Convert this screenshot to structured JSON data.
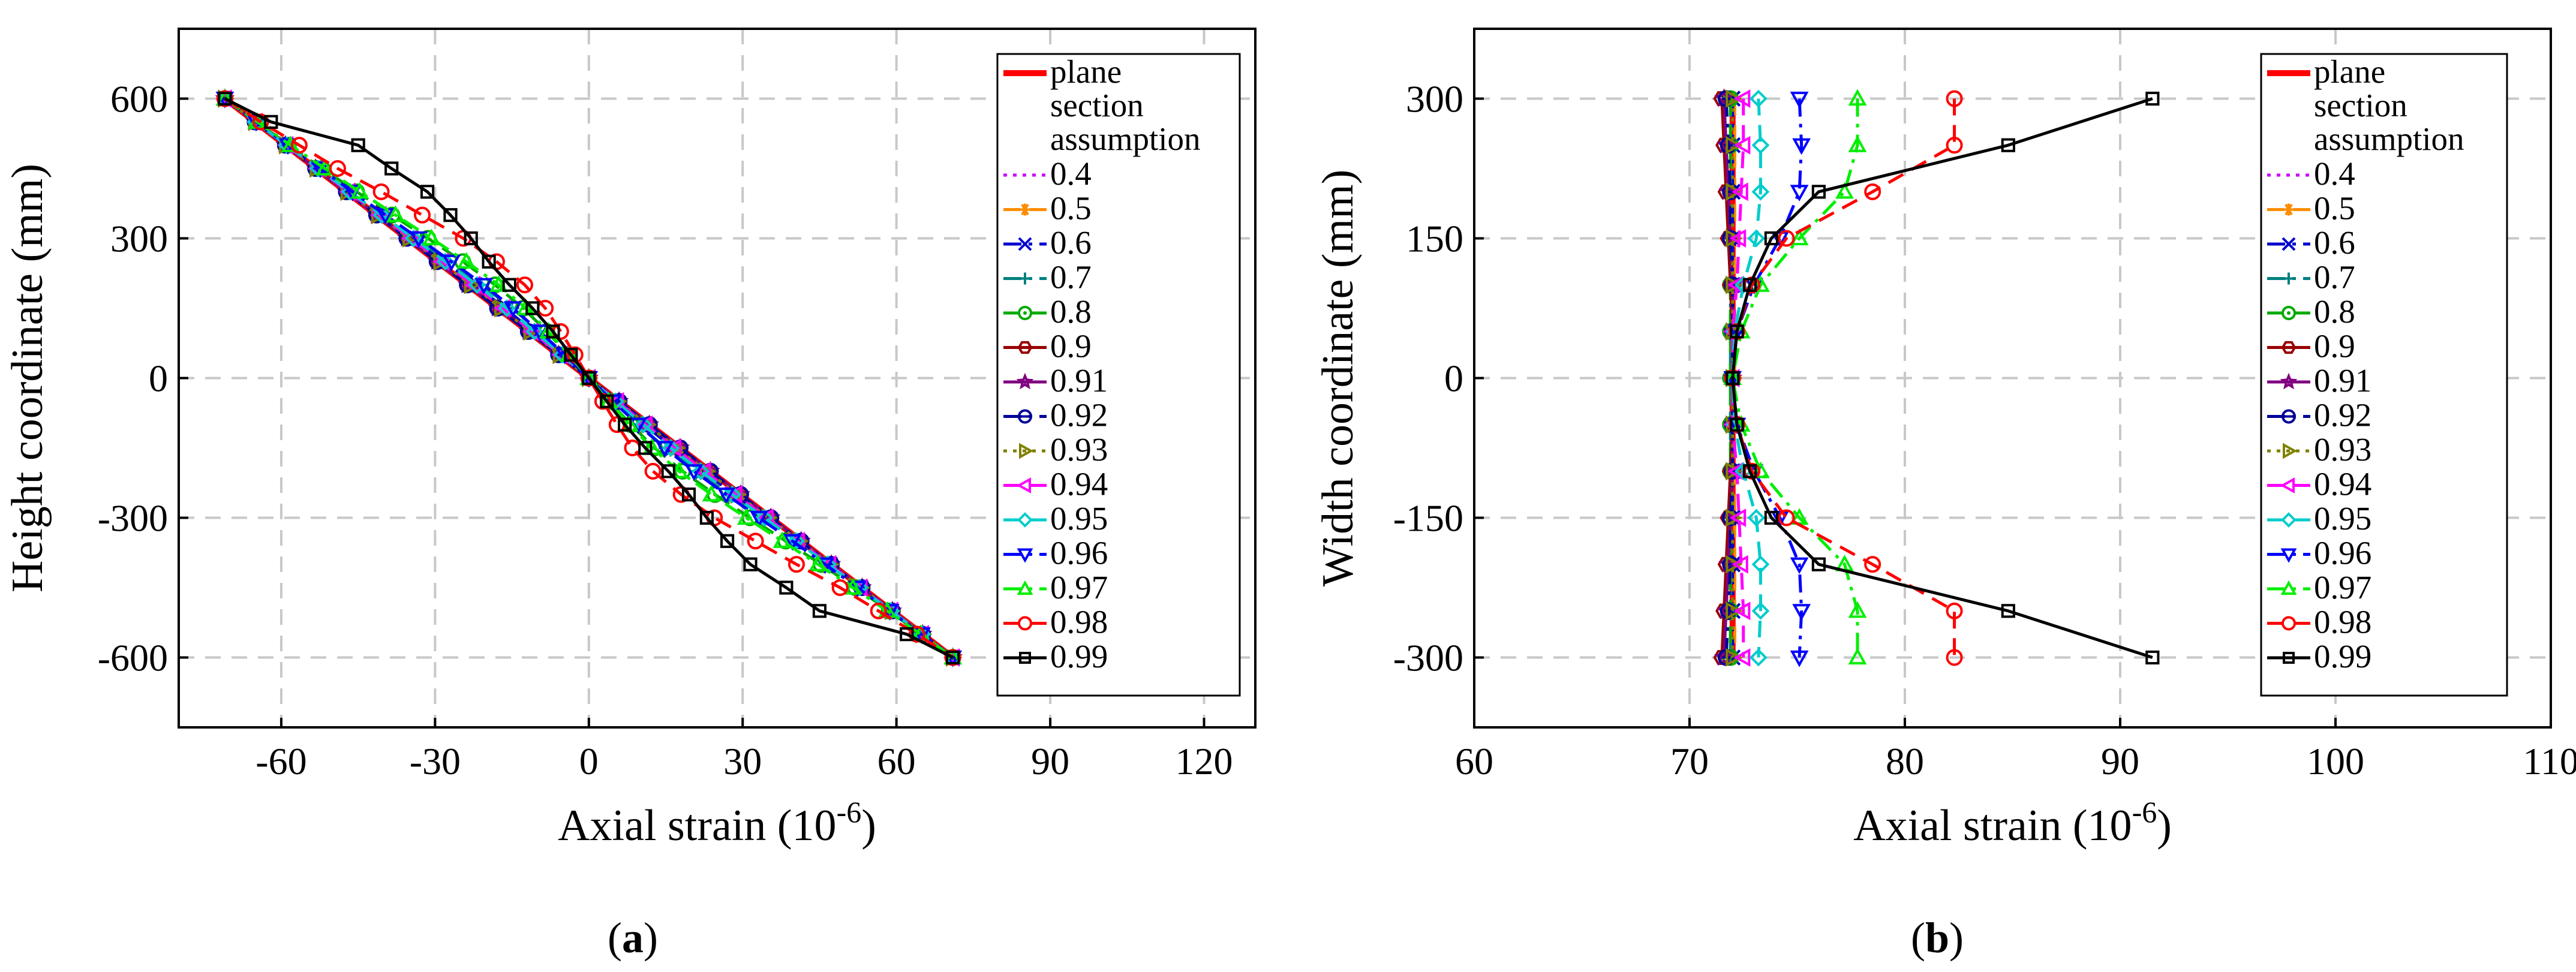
{
  "chart_data": [
    {
      "type": "line",
      "panel_label": "a",
      "xlabel": "Axial strain (10",
      "xlabel_sup": "-6",
      "xlabel_close": ")",
      "ylabel": "Height coordinate (mm)",
      "xlim": [
        -80,
        130
      ],
      "ylim": [
        -750,
        750
      ],
      "xticks": [
        -60,
        -30,
        0,
        30,
        60,
        90,
        120
      ],
      "yticks": [
        600,
        300,
        0,
        -300,
        -600
      ],
      "grid": true,
      "legend_position": "top-right",
      "y": [
        600,
        550,
        500,
        450,
        400,
        350,
        300,
        250,
        200,
        150,
        100,
        50,
        0,
        -50,
        -100,
        -150,
        -200,
        -250,
        -300,
        -350,
        -400,
        -450,
        -500,
        -550,
        -600
      ],
      "series": [
        {
          "name": "plane section assumption",
          "color": "#ff0000",
          "dash": "",
          "marker": "none",
          "line_width": 10,
          "x": [
            -71,
            71
          ],
          "y": [
            600,
            -600
          ]
        },
        {
          "name": "0.4",
          "color": "#cc00ff",
          "dash": "dot",
          "marker": "none",
          "x": [
            -71.0,
            -65.1,
            -59.2,
            -53.3,
            -47.3,
            -41.4,
            -35.5,
            -29.6,
            -23.7,
            -17.8,
            -11.8,
            -5.9,
            0.0,
            5.9,
            11.8,
            17.8,
            23.7,
            29.6,
            35.5,
            41.4,
            47.3,
            53.3,
            59.2,
            65.1,
            71.0
          ]
        },
        {
          "name": "0.5",
          "color": "#ff8c00",
          "dash": "dash",
          "marker": "asterisk",
          "x": [
            -71.0,
            -65.1,
            -59.2,
            -53.3,
            -47.3,
            -41.4,
            -35.5,
            -29.6,
            -23.7,
            -17.8,
            -11.8,
            -5.9,
            0.0,
            5.9,
            11.8,
            17.8,
            23.7,
            29.6,
            35.5,
            41.4,
            47.3,
            53.3,
            59.2,
            65.1,
            71.0
          ]
        },
        {
          "name": "0.6",
          "color": "#0000cc",
          "dash": "dashdot",
          "marker": "x",
          "x": [
            -71.0,
            -65.0,
            -59.0,
            -53.0,
            -47.0,
            -40.8,
            -34.6,
            -28.4,
            -22.2,
            -16.4,
            -10.8,
            -5.3,
            0.0,
            5.3,
            10.8,
            16.4,
            22.2,
            28.4,
            34.6,
            40.8,
            47.0,
            53.0,
            59.0,
            65.0,
            71.0
          ]
        },
        {
          "name": "0.7",
          "color": "#008080",
          "dash": "dashdot",
          "marker": "plus",
          "x": [
            -71.0,
            -65.0,
            -58.9,
            -52.8,
            -46.5,
            -40.2,
            -33.8,
            -27.4,
            -21.0,
            -15.0,
            -9.6,
            -4.7,
            0.0,
            4.7,
            9.6,
            15.0,
            21.0,
            27.4,
            33.8,
            40.2,
            46.5,
            52.8,
            58.9,
            65.0,
            71.0
          ]
        },
        {
          "name": "0.8",
          "color": "#00aa00",
          "dash": "dash",
          "marker": "circle-dot",
          "x": [
            -71.0,
            -64.8,
            -58.6,
            -52.0,
            -45.3,
            -38.4,
            -31.4,
            -24.6,
            -18.3,
            -12.8,
            -8.2,
            -4.0,
            0.0,
            4.0,
            8.2,
            12.8,
            18.3,
            24.6,
            31.4,
            38.4,
            45.3,
            52.0,
            58.6,
            64.8,
            71.0
          ]
        },
        {
          "name": "0.9",
          "color": "#990000",
          "dash": "",
          "marker": "hexagon",
          "x": [
            -71.0,
            -65.1,
            -59.2,
            -53.3,
            -47.3,
            -41.4,
            -35.5,
            -29.6,
            -23.7,
            -17.8,
            -11.8,
            -5.9,
            0.0,
            5.9,
            11.8,
            17.8,
            23.7,
            29.6,
            35.5,
            41.4,
            47.3,
            53.3,
            59.2,
            65.1,
            71.0
          ]
        },
        {
          "name": "0.91",
          "color": "#800080",
          "dash": "",
          "marker": "star",
          "x": [
            -71.0,
            -65.1,
            -59.2,
            -53.3,
            -47.3,
            -41.4,
            -35.5,
            -29.6,
            -23.7,
            -17.8,
            -11.8,
            -5.9,
            0.0,
            5.9,
            11.8,
            17.8,
            23.7,
            29.6,
            35.5,
            41.4,
            47.3,
            53.3,
            59.2,
            65.1,
            71.0
          ]
        },
        {
          "name": "0.92",
          "color": "#000099",
          "dash": "dashdot",
          "marker": "circle-dash",
          "x": [
            -71.0,
            -65.1,
            -59.2,
            -53.3,
            -47.3,
            -41.4,
            -35.5,
            -29.6,
            -23.7,
            -17.8,
            -11.8,
            -5.9,
            0.0,
            5.9,
            11.8,
            17.8,
            23.7,
            29.6,
            35.5,
            41.4,
            47.3,
            53.3,
            59.2,
            65.1,
            71.0
          ]
        },
        {
          "name": "0.93",
          "color": "#808000",
          "dash": "dot",
          "marker": "triangle-right",
          "x": [
            -71.0,
            -65.1,
            -59.1,
            -53.1,
            -47.1,
            -41.1,
            -35.0,
            -29.0,
            -23.0,
            -17.1,
            -11.4,
            -5.7,
            0.0,
            5.7,
            11.4,
            17.1,
            23.0,
            29.0,
            35.0,
            41.1,
            47.1,
            53.1,
            59.1,
            65.1,
            71.0
          ]
        },
        {
          "name": "0.94",
          "color": "#ff00ff",
          "dash": "dash",
          "marker": "triangle-left",
          "x": [
            -71.0,
            -65.0,
            -59.0,
            -53.0,
            -46.9,
            -40.8,
            -34.7,
            -28.6,
            -22.5,
            -16.7,
            -11.1,
            -5.5,
            0.0,
            5.5,
            11.1,
            16.7,
            22.5,
            28.6,
            34.7,
            40.8,
            46.9,
            53.0,
            59.0,
            65.0,
            71.0
          ]
        },
        {
          "name": "0.95",
          "color": "#00cccc",
          "dash": "dash",
          "marker": "diamond",
          "x": [
            -71.0,
            -65.0,
            -58.9,
            -52.8,
            -46.6,
            -40.4,
            -34.2,
            -28.0,
            -21.8,
            -16.0,
            -10.6,
            -5.2,
            0.0,
            5.2,
            10.6,
            16.0,
            21.8,
            28.0,
            34.2,
            40.4,
            46.6,
            52.8,
            58.9,
            65.0,
            71.0
          ]
        },
        {
          "name": "0.96",
          "color": "#0000ff",
          "dash": "dashdot",
          "marker": "triangle-down",
          "x": [
            -71.0,
            -64.9,
            -58.7,
            -52.4,
            -46.1,
            -39.7,
            -33.2,
            -26.8,
            -20.5,
            -14.8,
            -9.6,
            -4.7,
            0.0,
            4.7,
            9.6,
            14.8,
            20.5,
            26.8,
            33.2,
            39.7,
            46.1,
            52.4,
            58.7,
            64.9,
            71.0
          ]
        },
        {
          "name": "0.97",
          "color": "#00ee00",
          "dash": "dashdot",
          "marker": "triangle-up",
          "x": [
            -71.0,
            -64.7,
            -58.2,
            -51.5,
            -44.7,
            -37.7,
            -30.7,
            -23.9,
            -17.6,
            -12.3,
            -7.9,
            -3.9,
            0.0,
            3.9,
            7.9,
            12.3,
            17.6,
            23.9,
            30.7,
            37.7,
            44.7,
            51.5,
            58.2,
            64.7,
            71.0
          ]
        },
        {
          "name": "0.98",
          "color": "#ff0000",
          "dash": "dash",
          "marker": "circle",
          "x": [
            -71.0,
            -64.0,
            -56.5,
            -49.0,
            -40.5,
            -32.5,
            -24.5,
            -18.0,
            -12.5,
            -8.5,
            -5.5,
            -2.7,
            0.0,
            2.7,
            5.5,
            8.5,
            12.5,
            18.0,
            24.5,
            32.5,
            40.5,
            49.0,
            56.5,
            64.0,
            71.0
          ]
        },
        {
          "name": "0.99",
          "color": "#000000",
          "dash": "",
          "marker": "square",
          "x": [
            -71.0,
            -62.0,
            -45.0,
            -38.5,
            -31.5,
            -27.0,
            -23.0,
            -19.5,
            -15.5,
            -11.0,
            -7.0,
            -3.5,
            0.0,
            3.5,
            7.0,
            11.0,
            15.5,
            19.5,
            23.0,
            27.0,
            31.5,
            38.5,
            45.0,
            62.0,
            71.0
          ]
        }
      ]
    },
    {
      "type": "line",
      "panel_label": "b",
      "xlabel": "Axial strain (10",
      "xlabel_sup": "-6",
      "xlabel_close": ")",
      "ylabel": "Width coordinate (mm)",
      "xlim": [
        60,
        110
      ],
      "ylim": [
        -375,
        375
      ],
      "xticks": [
        60,
        70,
        80,
        90,
        100,
        110
      ],
      "yticks": [
        300,
        150,
        0,
        -150,
        -300
      ],
      "grid": true,
      "legend_position": "top-right",
      "y": [
        300,
        250,
        200,
        150,
        100,
        50,
        0,
        -50,
        -100,
        -150,
        -200,
        -250,
        -300
      ],
      "series": [
        {
          "name": "plane section assumption",
          "color": "#ff0000",
          "dash": "",
          "marker": "none",
          "line_width": 10,
          "x": [
            72.0,
            72.0
          ],
          "y": [
            300,
            -300
          ]
        },
        {
          "name": "0.4",
          "color": "#cc00ff",
          "dash": "dot",
          "marker": "none",
          "x": [
            72.0,
            72.0,
            72.0,
            72.0,
            72.0,
            72.0,
            72.0,
            72.0,
            72.0,
            72.0,
            72.0,
            72.0,
            72.0
          ]
        },
        {
          "name": "0.5",
          "color": "#ff8c00",
          "dash": "dash",
          "marker": "asterisk",
          "x": [
            72.1,
            72.1,
            72.1,
            72.1,
            72.1,
            72.1,
            72.1,
            72.1,
            72.1,
            72.1,
            72.1,
            72.1,
            72.1
          ]
        },
        {
          "name": "0.6",
          "color": "#0000cc",
          "dash": "dashdot",
          "marker": "x",
          "x": [
            72.0,
            72.0,
            72.0,
            72.0,
            72.0,
            72.0,
            72.0,
            72.0,
            72.0,
            72.0,
            72.0,
            72.0,
            72.0
          ]
        },
        {
          "name": "0.7",
          "color": "#008080",
          "dash": "dashdot",
          "marker": "plus",
          "x": [
            71.9,
            71.9,
            71.9,
            71.9,
            71.9,
            71.9,
            71.9,
            71.9,
            71.9,
            71.9,
            71.9,
            71.9,
            71.9
          ]
        },
        {
          "name": "0.8",
          "color": "#00aa00",
          "dash": "dash",
          "marker": "circle-dot",
          "x": [
            71.9,
            71.9,
            71.9,
            71.9,
            71.9,
            71.9,
            71.9,
            71.9,
            71.9,
            71.9,
            71.9,
            71.9,
            71.9
          ]
        },
        {
          "name": "0.9",
          "color": "#990000",
          "dash": "",
          "marker": "hexagon",
          "x": [
            71.5,
            71.6,
            71.7,
            71.8,
            71.9,
            72.0,
            72.0,
            72.0,
            71.9,
            71.8,
            71.7,
            71.6,
            71.5
          ]
        },
        {
          "name": "0.91",
          "color": "#800080",
          "dash": "",
          "marker": "star",
          "x": [
            71.6,
            71.7,
            71.8,
            71.9,
            72.0,
            72.0,
            72.0,
            72.0,
            72.0,
            71.9,
            71.8,
            71.7,
            71.6
          ]
        },
        {
          "name": "0.92",
          "color": "#000099",
          "dash": "dashdot",
          "marker": "circle-dash",
          "x": [
            71.7,
            71.8,
            71.9,
            71.9,
            72.0,
            72.0,
            72.0,
            72.0,
            72.0,
            71.9,
            71.9,
            71.8,
            71.7
          ]
        },
        {
          "name": "0.93",
          "color": "#808000",
          "dash": "dot",
          "marker": "triangle-right",
          "x": [
            72.0,
            72.0,
            72.0,
            72.0,
            72.0,
            72.0,
            72.0,
            72.0,
            72.0,
            72.0,
            72.0,
            72.0,
            72.0
          ]
        },
        {
          "name": "0.94",
          "color": "#ff00ff",
          "dash": "dash",
          "marker": "triangle-left",
          "x": [
            72.5,
            72.5,
            72.4,
            72.3,
            72.2,
            72.0,
            72.0,
            72.0,
            72.2,
            72.3,
            72.4,
            72.5,
            72.5
          ]
        },
        {
          "name": "0.95",
          "color": "#00cccc",
          "dash": "dash",
          "marker": "diamond",
          "x": [
            73.2,
            73.3,
            73.3,
            73.1,
            72.5,
            72.1,
            72.0,
            72.1,
            72.5,
            73.1,
            73.3,
            73.3,
            73.2
          ]
        },
        {
          "name": "0.96",
          "color": "#0000ff",
          "dash": "dashdot",
          "marker": "triangle-down",
          "x": [
            75.1,
            75.2,
            75.1,
            74.2,
            73.0,
            72.2,
            72.0,
            72.2,
            73.0,
            74.2,
            75.1,
            75.2,
            75.1
          ]
        },
        {
          "name": "0.97",
          "color": "#00ee00",
          "dash": "dashdot",
          "marker": "triangle-up",
          "x": [
            77.8,
            77.8,
            77.2,
            75.1,
            73.3,
            72.4,
            72.0,
            72.4,
            73.3,
            75.1,
            77.2,
            77.8,
            77.8
          ]
        },
        {
          "name": "0.98",
          "color": "#ff0000",
          "dash": "dash",
          "marker": "circle",
          "x": [
            82.3,
            82.3,
            78.5,
            74.5,
            72.9,
            72.2,
            72.0,
            72.2,
            72.9,
            74.5,
            78.5,
            82.3,
            82.3
          ]
        },
        {
          "name": "0.99",
          "color": "#000000",
          "dash": "",
          "marker": "square",
          "x": [
            91.5,
            84.8,
            76.0,
            73.8,
            72.8,
            72.2,
            72.0,
            72.2,
            72.8,
            73.8,
            76.0,
            84.8,
            91.5
          ]
        }
      ]
    }
  ]
}
